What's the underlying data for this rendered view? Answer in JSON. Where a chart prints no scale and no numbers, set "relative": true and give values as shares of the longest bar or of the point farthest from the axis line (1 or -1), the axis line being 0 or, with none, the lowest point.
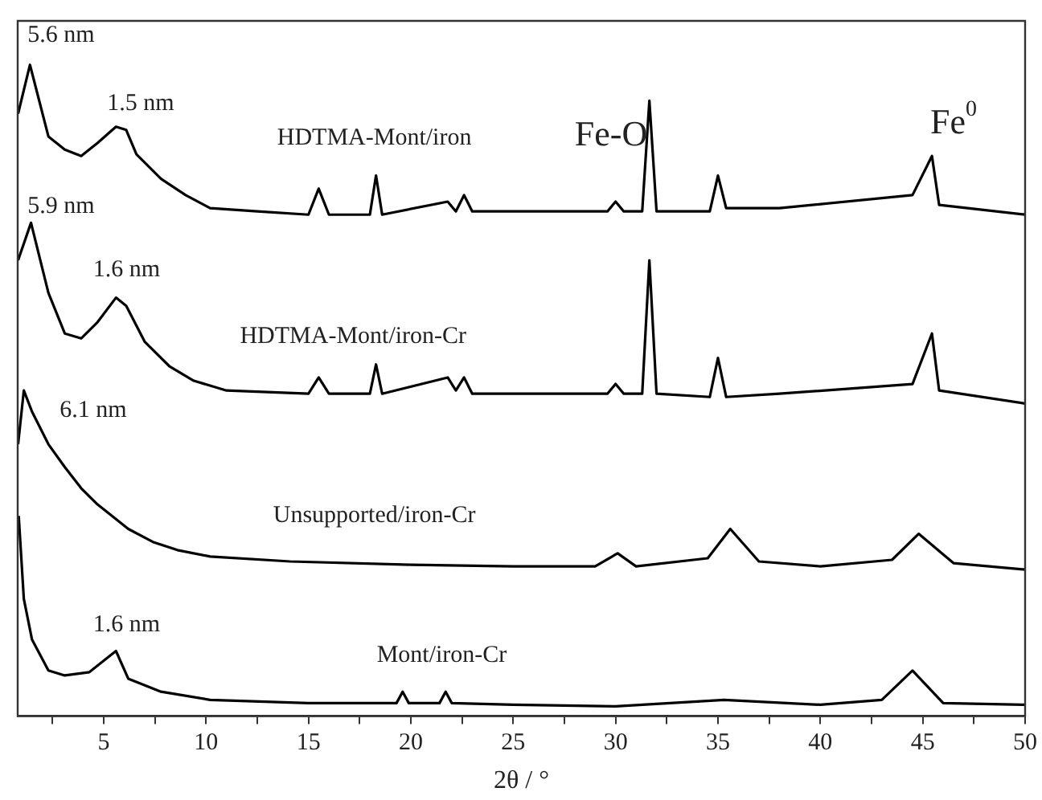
{
  "chart_data": {
    "type": "line",
    "relative": true,
    "xlabel": "2θ / °",
    "xlim": [
      0.8,
      50
    ],
    "xticks": [
      {
        "value": 2.5,
        "label": null
      },
      5,
      {
        "value": 7.5,
        "label": null
      },
      10,
      {
        "value": 12.5,
        "label": null
      },
      15,
      {
        "value": 17.5,
        "label": null
      },
      20,
      {
        "value": 22.5,
        "label": null
      },
      25,
      {
        "value": 27.5,
        "label": null
      },
      30,
      {
        "value": 32.5,
        "label": null
      },
      35,
      {
        "value": 37.5,
        "label": null
      },
      40,
      {
        "value": 42.5,
        "label": null
      },
      45,
      {
        "value": 47.5,
        "label": null
      },
      50
    ],
    "grid": false,
    "legend": false,
    "marker": "none",
    "line_style": "solid",
    "series": [
      {
        "color": "#000000",
        "x": [
          0.82,
          1.4,
          2.3,
          3.1,
          3.9,
          4.7,
          5.6,
          6.1,
          6.6,
          7.8,
          9,
          10.2,
          12.5,
          15,
          15.5,
          16,
          18,
          18.3,
          18.6,
          21.8,
          22.2,
          22.6,
          23,
          29.6,
          30,
          30.4,
          31.3,
          31.65,
          32,
          34.6,
          35,
          35.4,
          38,
          44.5,
          45.45,
          45.8,
          50
        ],
        "values": [
          0.925,
          1,
          0.89,
          0.87,
          0.86,
          0.88,
          0.905,
          0.9,
          0.8625,
          0.825,
          0.8,
          0.78,
          0.775,
          0.77,
          0.81,
          0.77,
          0.77,
          0.83,
          0.77,
          0.79,
          0.775,
          0.8,
          0.775,
          0.775,
          0.79,
          0.775,
          0.775,
          0.945,
          0.775,
          0.775,
          0.83,
          0.78,
          0.78,
          0.8,
          0.86,
          0.785,
          0.77
        ]
      },
      {
        "color": "#000000",
        "x": [
          0.82,
          1.45,
          2.3,
          3.1,
          3.9,
          4.7,
          5.6,
          6.1,
          7,
          8.2,
          9.4,
          11,
          15,
          15.5,
          16,
          18,
          18.3,
          18.6,
          21.8,
          22.2,
          22.6,
          23,
          29.6,
          30,
          30.4,
          31.3,
          31.65,
          32,
          34.6,
          35,
          35.4,
          38,
          44.5,
          45.45,
          45.8,
          50
        ],
        "values": [
          0.7,
          0.7575,
          0.65,
          0.5875,
          0.58,
          0.605,
          0.6425,
          0.63,
          0.575,
          0.5375,
          0.515,
          0.5,
          0.495,
          0.52,
          0.495,
          0.495,
          0.54,
          0.495,
          0.52,
          0.5,
          0.52,
          0.495,
          0.495,
          0.51,
          0.495,
          0.495,
          0.7,
          0.495,
          0.49,
          0.55,
          0.49,
          0.495,
          0.51,
          0.5875,
          0.5,
          0.48
        ]
      },
      {
        "color": "#000000",
        "x": [
          0.82,
          1.1,
          1.5,
          2.3,
          3.1,
          3.9,
          4.7,
          5.5,
          6.2,
          7.4,
          8.6,
          10.2,
          14.1,
          20,
          25,
          29,
          30.1,
          31,
          34.5,
          35.6,
          37,
          40,
          43.5,
          44.8,
          46.5,
          50
        ],
        "values": [
          0.4175,
          0.5,
          0.4675,
          0.4175,
          0.3825,
          0.35,
          0.325,
          0.305,
          0.2875,
          0.2675,
          0.255,
          0.245,
          0.2375,
          0.2325,
          0.23,
          0.23,
          0.25,
          0.23,
          0.2425,
          0.2875,
          0.2375,
          0.23,
          0.24,
          0.28,
          0.235,
          0.225
        ]
      },
      {
        "color": "#000000",
        "x": [
          0.85,
          1.1,
          1.5,
          2.3,
          3.1,
          4.3,
          5.3,
          5.6,
          6.2,
          7.8,
          10.2,
          15,
          19.3,
          19.6,
          19.9,
          21.4,
          21.7,
          22,
          25,
          30,
          35.3,
          40,
          43,
          44.5,
          46,
          50
        ],
        "values": [
          0.3075,
          0.18,
          0.1175,
          0.07,
          0.0625,
          0.0675,
          0.0925,
          0.1,
          0.0575,
          0.0375,
          0.025,
          0.02,
          0.02,
          0.0375,
          0.02,
          0.02,
          0.0375,
          0.02,
          0.0175,
          0.015,
          0.025,
          0.0175,
          0.025,
          0.07,
          0.02,
          0.0175
        ]
      }
    ],
    "annotations": [
      "5.6 nm",
      "1.5 nm",
      "HDTMA-Mont/iron",
      "Fe-O",
      "Fe$^{0}$",
      "5.9 nm",
      "1.6 nm",
      "HDTMA-Mont/iron-Cr",
      "6.1 nm",
      "Unsupported/iron-Cr",
      "1.6 nm",
      "Mont/iron-Cr"
    ]
  }
}
